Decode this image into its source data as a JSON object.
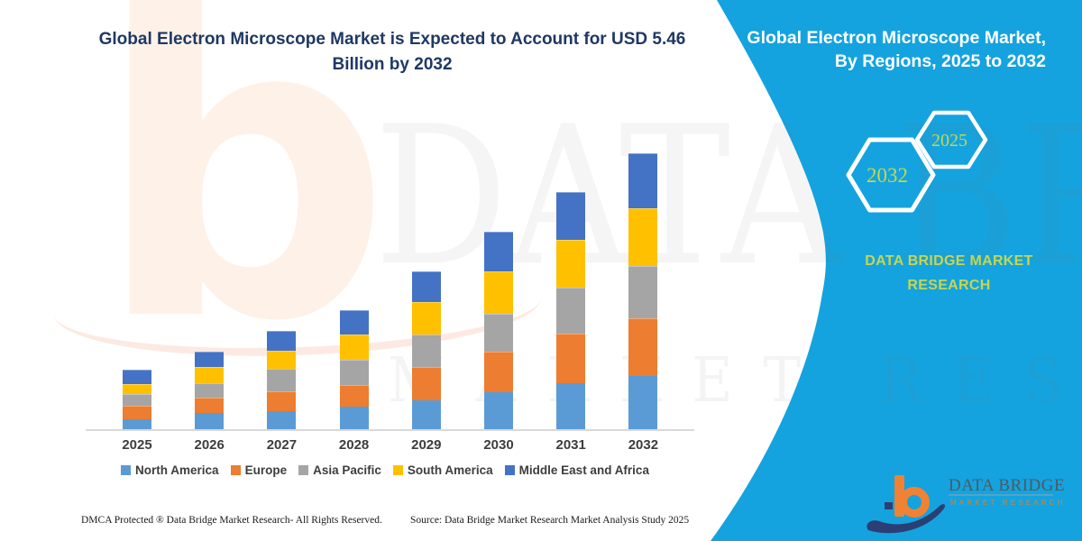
{
  "page": {
    "background": "#FFFFFF",
    "accent_cyan": "#14A3DF"
  },
  "header": {
    "title": "Global Electron Microscope Market is Expected to Account for USD 5.46 Billion by 2032"
  },
  "chart_data": {
    "type": "bar",
    "stacked": true,
    "unit": "USD Billion",
    "categories": [
      "2025",
      "2026",
      "2027",
      "2028",
      "2029",
      "2030",
      "2031",
      "2032"
    ],
    "series": [
      {
        "name": "North America",
        "color": "#5B9BD5",
        "values": [
          0.2,
          0.32,
          0.35,
          0.45,
          0.58,
          0.74,
          0.91,
          1.06
        ]
      },
      {
        "name": "Europe",
        "color": "#ED7D31",
        "values": [
          0.26,
          0.31,
          0.4,
          0.43,
          0.65,
          0.79,
          0.98,
          1.14
        ]
      },
      {
        "name": "Asia Pacific",
        "color": "#A5A5A5",
        "values": [
          0.24,
          0.28,
          0.45,
          0.49,
          0.64,
          0.76,
          0.91,
          1.04
        ]
      },
      {
        "name": "South America",
        "color": "#FFC000",
        "values": [
          0.2,
          0.33,
          0.36,
          0.51,
          0.64,
          0.83,
          0.95,
          1.13
        ]
      },
      {
        "name": "Middle East and Africa",
        "color": "#4472C4",
        "values": [
          0.28,
          0.3,
          0.39,
          0.47,
          0.61,
          0.79,
          0.95,
          1.09
        ]
      }
    ],
    "totals": [
      1.18,
      1.54,
      1.95,
      2.35,
      3.12,
      3.91,
      4.7,
      5.46
    ],
    "ylim": [
      0,
      5.46
    ],
    "grid": false,
    "y_axis_shown": false,
    "legend_position": "bottom",
    "baseline_color": "#D9D9D9",
    "label_color": "#3d3d3d"
  },
  "sidebar": {
    "title_line1": "Global Electron Microscope Market,",
    "title_line2": "By Regions, 2025 to 2032",
    "hexagon_left_year": "2032",
    "hexagon_right_year": "2025",
    "brand_line1": "DATA BRIDGE MARKET",
    "brand_line2": "RESEARCH",
    "text_color": "#C6D64F"
  },
  "watermarks": {
    "letter": "b",
    "text_top": "DATA BRIDGE",
    "text_bottom": "MARKET RESEARCH"
  },
  "logo": {
    "name": "DATA BRIDGE",
    "tagline": "MARKET RESEARCH"
  },
  "footer": {
    "left": "DMCA Protected ® Data Bridge Market Research-  All Rights Reserved.",
    "right": "Source: Data Bridge Market Research  Market Analysis Study 2025"
  }
}
